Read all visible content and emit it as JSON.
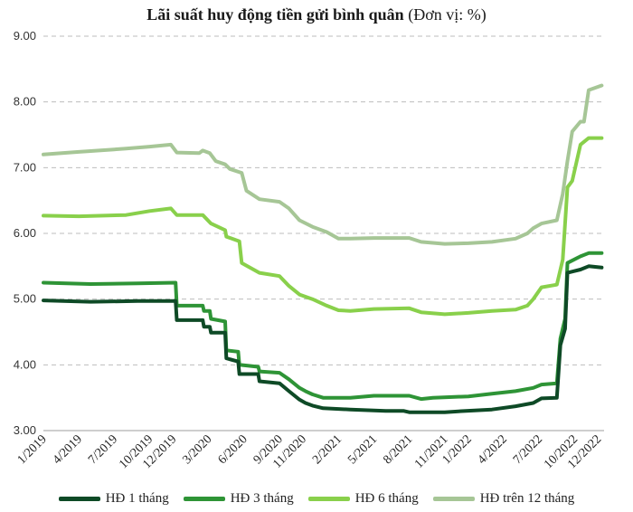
{
  "chart_data": {
    "type": "line",
    "title_bold": "Lãi suất huy động tiền gửi bình quân",
    "title_normal": " (Đơn vị: %)",
    "ylim": [
      3.0,
      9.0
    ],
    "yticks": [
      "9.00",
      "8.00",
      "7.00",
      "6.00",
      "5.00",
      "4.00",
      "3.00"
    ],
    "ytick_values": [
      9,
      8,
      7,
      6,
      5,
      4,
      3
    ],
    "grid": true,
    "legend_position": "bottom",
    "x_tick_labels": [
      "1/2019",
      "4/2019",
      "7/2019",
      "10/2019",
      "12/2019",
      "3/2020",
      "6/2020",
      "9/2020",
      "11/2020",
      "2/2021",
      "5/2021",
      "8/2021",
      "11/2021",
      "1/2022",
      "4/2022",
      "7/2022",
      "10/2022",
      "12/2022"
    ],
    "x_tick_months": [
      0,
      3,
      6,
      9,
      11,
      14,
      17,
      20,
      22,
      25,
      28,
      31,
      34,
      36,
      39,
      42,
      45,
      47
    ],
    "x_range_months": [
      0,
      47.5
    ],
    "series": [
      {
        "name": "HĐ 1 tháng",
        "color": "#0e4a26",
        "points": [
          [
            0,
            4.98
          ],
          [
            4,
            4.96
          ],
          [
            8,
            4.97
          ],
          [
            11.2,
            4.97
          ],
          [
            11.3,
            4.68
          ],
          [
            13.5,
            4.68
          ],
          [
            13.6,
            4.58
          ],
          [
            14.1,
            4.58
          ],
          [
            14.2,
            4.49
          ],
          [
            15.4,
            4.49
          ],
          [
            15.5,
            4.1
          ],
          [
            16.5,
            4.05
          ],
          [
            16.6,
            3.86
          ],
          [
            18.2,
            3.86
          ],
          [
            18.3,
            3.75
          ],
          [
            20,
            3.72
          ],
          [
            20.8,
            3.6
          ],
          [
            21.7,
            3.47
          ],
          [
            22.2,
            3.42
          ],
          [
            22.8,
            3.38
          ],
          [
            23.7,
            3.34
          ],
          [
            26,
            3.32
          ],
          [
            29,
            3.3
          ],
          [
            30.5,
            3.3
          ],
          [
            31,
            3.28
          ],
          [
            34,
            3.28
          ],
          [
            35.8,
            3.3
          ],
          [
            38,
            3.32
          ],
          [
            40,
            3.37
          ],
          [
            41.5,
            3.42
          ],
          [
            42.2,
            3.49
          ],
          [
            43.5,
            3.5
          ],
          [
            43.8,
            4.3
          ],
          [
            44.2,
            4.55
          ],
          [
            44.4,
            5.4
          ],
          [
            45.5,
            5.45
          ],
          [
            46.2,
            5.5
          ],
          [
            47.3,
            5.48
          ]
        ]
      },
      {
        "name": "HĐ 3 tháng",
        "color": "#2e9436",
        "points": [
          [
            0,
            5.25
          ],
          [
            4,
            5.23
          ],
          [
            8,
            5.24
          ],
          [
            11.2,
            5.25
          ],
          [
            11.3,
            4.9
          ],
          [
            13.5,
            4.9
          ],
          [
            13.6,
            4.82
          ],
          [
            14.1,
            4.82
          ],
          [
            14.2,
            4.7
          ],
          [
            15.4,
            4.66
          ],
          [
            15.5,
            4.22
          ],
          [
            16.5,
            4.2
          ],
          [
            16.6,
            4.0
          ],
          [
            18.2,
            3.97
          ],
          [
            18.3,
            3.9
          ],
          [
            20,
            3.88
          ],
          [
            20.8,
            3.78
          ],
          [
            21.7,
            3.65
          ],
          [
            22.2,
            3.6
          ],
          [
            22.8,
            3.55
          ],
          [
            23.7,
            3.5
          ],
          [
            26,
            3.5
          ],
          [
            28,
            3.53
          ],
          [
            31,
            3.53
          ],
          [
            32,
            3.48
          ],
          [
            33,
            3.5
          ],
          [
            36,
            3.52
          ],
          [
            38,
            3.56
          ],
          [
            40,
            3.6
          ],
          [
            41.5,
            3.65
          ],
          [
            42.2,
            3.7
          ],
          [
            43.5,
            3.72
          ],
          [
            43.8,
            4.4
          ],
          [
            44.2,
            4.7
          ],
          [
            44.4,
            5.55
          ],
          [
            45.5,
            5.65
          ],
          [
            46.2,
            5.7
          ],
          [
            47.3,
            5.7
          ]
        ]
      },
      {
        "name": "HĐ 6 tháng",
        "color": "#89d04b",
        "points": [
          [
            0,
            6.27
          ],
          [
            3,
            6.26
          ],
          [
            7,
            6.28
          ],
          [
            9,
            6.34
          ],
          [
            10.8,
            6.38
          ],
          [
            11.3,
            6.28
          ],
          [
            13.5,
            6.28
          ],
          [
            14.2,
            6.15
          ],
          [
            15.4,
            6.05
          ],
          [
            15.5,
            5.95
          ],
          [
            16.6,
            5.88
          ],
          [
            16.8,
            5.55
          ],
          [
            18.3,
            5.4
          ],
          [
            20,
            5.35
          ],
          [
            20.8,
            5.2
          ],
          [
            21.7,
            5.07
          ],
          [
            22.8,
            5.0
          ],
          [
            24,
            4.9
          ],
          [
            25,
            4.83
          ],
          [
            26,
            4.82
          ],
          [
            28,
            4.85
          ],
          [
            31,
            4.86
          ],
          [
            32,
            4.8
          ],
          [
            34,
            4.77
          ],
          [
            36,
            4.79
          ],
          [
            38,
            4.82
          ],
          [
            40,
            4.84
          ],
          [
            41,
            4.9
          ],
          [
            41.5,
            5.0
          ],
          [
            42.2,
            5.18
          ],
          [
            43.5,
            5.22
          ],
          [
            44,
            5.6
          ],
          [
            44.4,
            6.7
          ],
          [
            44.8,
            6.8
          ],
          [
            45.5,
            7.35
          ],
          [
            46.2,
            7.45
          ],
          [
            47.3,
            7.45
          ]
        ]
      },
      {
        "name": "HĐ trên 12 tháng",
        "color": "#a6c696",
        "points": [
          [
            0,
            7.2
          ],
          [
            3,
            7.24
          ],
          [
            7,
            7.29
          ],
          [
            9,
            7.32
          ],
          [
            10.8,
            7.35
          ],
          [
            11.3,
            7.23
          ],
          [
            13.2,
            7.22
          ],
          [
            13.5,
            7.26
          ],
          [
            14.1,
            7.22
          ],
          [
            14.6,
            7.1
          ],
          [
            15.4,
            7.05
          ],
          [
            15.8,
            6.98
          ],
          [
            16.8,
            6.92
          ],
          [
            17.2,
            6.65
          ],
          [
            18.3,
            6.52
          ],
          [
            20,
            6.48
          ],
          [
            20.8,
            6.38
          ],
          [
            21.7,
            6.2
          ],
          [
            22.8,
            6.1
          ],
          [
            24,
            6.02
          ],
          [
            25,
            5.92
          ],
          [
            26,
            5.92
          ],
          [
            28,
            5.93
          ],
          [
            31,
            5.93
          ],
          [
            32,
            5.87
          ],
          [
            34,
            5.84
          ],
          [
            36,
            5.85
          ],
          [
            38,
            5.87
          ],
          [
            40,
            5.92
          ],
          [
            41,
            6.0
          ],
          [
            41.5,
            6.08
          ],
          [
            42.2,
            6.15
          ],
          [
            43.5,
            6.2
          ],
          [
            44,
            6.6
          ],
          [
            44.4,
            7.1
          ],
          [
            44.8,
            7.55
          ],
          [
            45.5,
            7.7
          ],
          [
            45.8,
            7.7
          ],
          [
            46.2,
            8.18
          ],
          [
            47.3,
            8.25
          ]
        ]
      }
    ]
  }
}
